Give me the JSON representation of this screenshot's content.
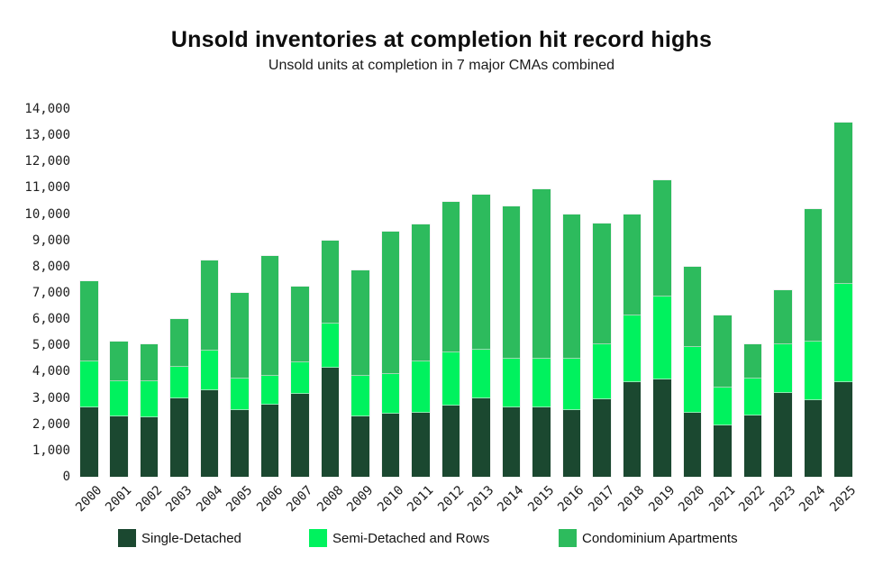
{
  "chart_data": {
    "type": "bar",
    "stacked": true,
    "title": "Unsold inventories at completion hit record highs",
    "subtitle": "Unsold units at completion in 7 major CMAs combined",
    "categories": [
      "2000",
      "2001",
      "2002",
      "2003",
      "2004",
      "2005",
      "2006",
      "2007",
      "2008",
      "2009",
      "2010",
      "2011",
      "2012",
      "2013",
      "2014",
      "2015",
      "2016",
      "2017",
      "2018",
      "2019",
      "2020",
      "2021",
      "2022",
      "2023",
      "2024",
      "2025"
    ],
    "series": [
      {
        "name": "Single-Detached",
        "color": "#1b4830",
        "values": [
          2650,
          2300,
          2250,
          3000,
          3300,
          2550,
          2750,
          3150,
          4150,
          2300,
          2400,
          2450,
          2700,
          3000,
          2650,
          2650,
          2550,
          2950,
          3600,
          3700,
          2450,
          1950,
          2350,
          3200,
          2900,
          3600
        ]
      },
      {
        "name": "Semi-Detached and Rows",
        "color": "#00f25e",
        "values": [
          1750,
          1350,
          1400,
          1200,
          1500,
          1200,
          1100,
          1200,
          1700,
          1550,
          1500,
          1950,
          2050,
          1850,
          1850,
          1850,
          1950,
          2100,
          2550,
          3150,
          2500,
          1450,
          1400,
          1850,
          2250,
          3750
        ]
      },
      {
        "name": "Condominium Apartments",
        "color": "#2dbb5d",
        "values": [
          3050,
          1500,
          1400,
          1800,
          3450,
          3250,
          4550,
          2900,
          3150,
          4000,
          5450,
          5200,
          5700,
          5900,
          5800,
          6450,
          5500,
          4600,
          3850,
          4450,
          3050,
          2750,
          1300,
          2050,
          5050,
          6150
        ]
      }
    ],
    "totals": [
      7450,
      5150,
      5050,
      6000,
      8250,
      7000,
      8400,
      7250,
      9000,
      7850,
      9350,
      9600,
      10450,
      10750,
      10300,
      10950,
      10000,
      9650,
      10000,
      11300,
      8000,
      6150,
      5050,
      7100,
      10200,
      13500
    ],
    "ylim": [
      0,
      14000
    ],
    "ytick_step": 1000,
    "ytick_labels": [
      "0",
      "1,000",
      "2,000",
      "3,000",
      "4,000",
      "5,000",
      "6,000",
      "7,000",
      "8,000",
      "9,000",
      "10,000",
      "11,000",
      "12,000",
      "13,000",
      "14,000"
    ],
    "grid": false,
    "legend_position": "bottom",
    "background_color": "#ffffff"
  }
}
